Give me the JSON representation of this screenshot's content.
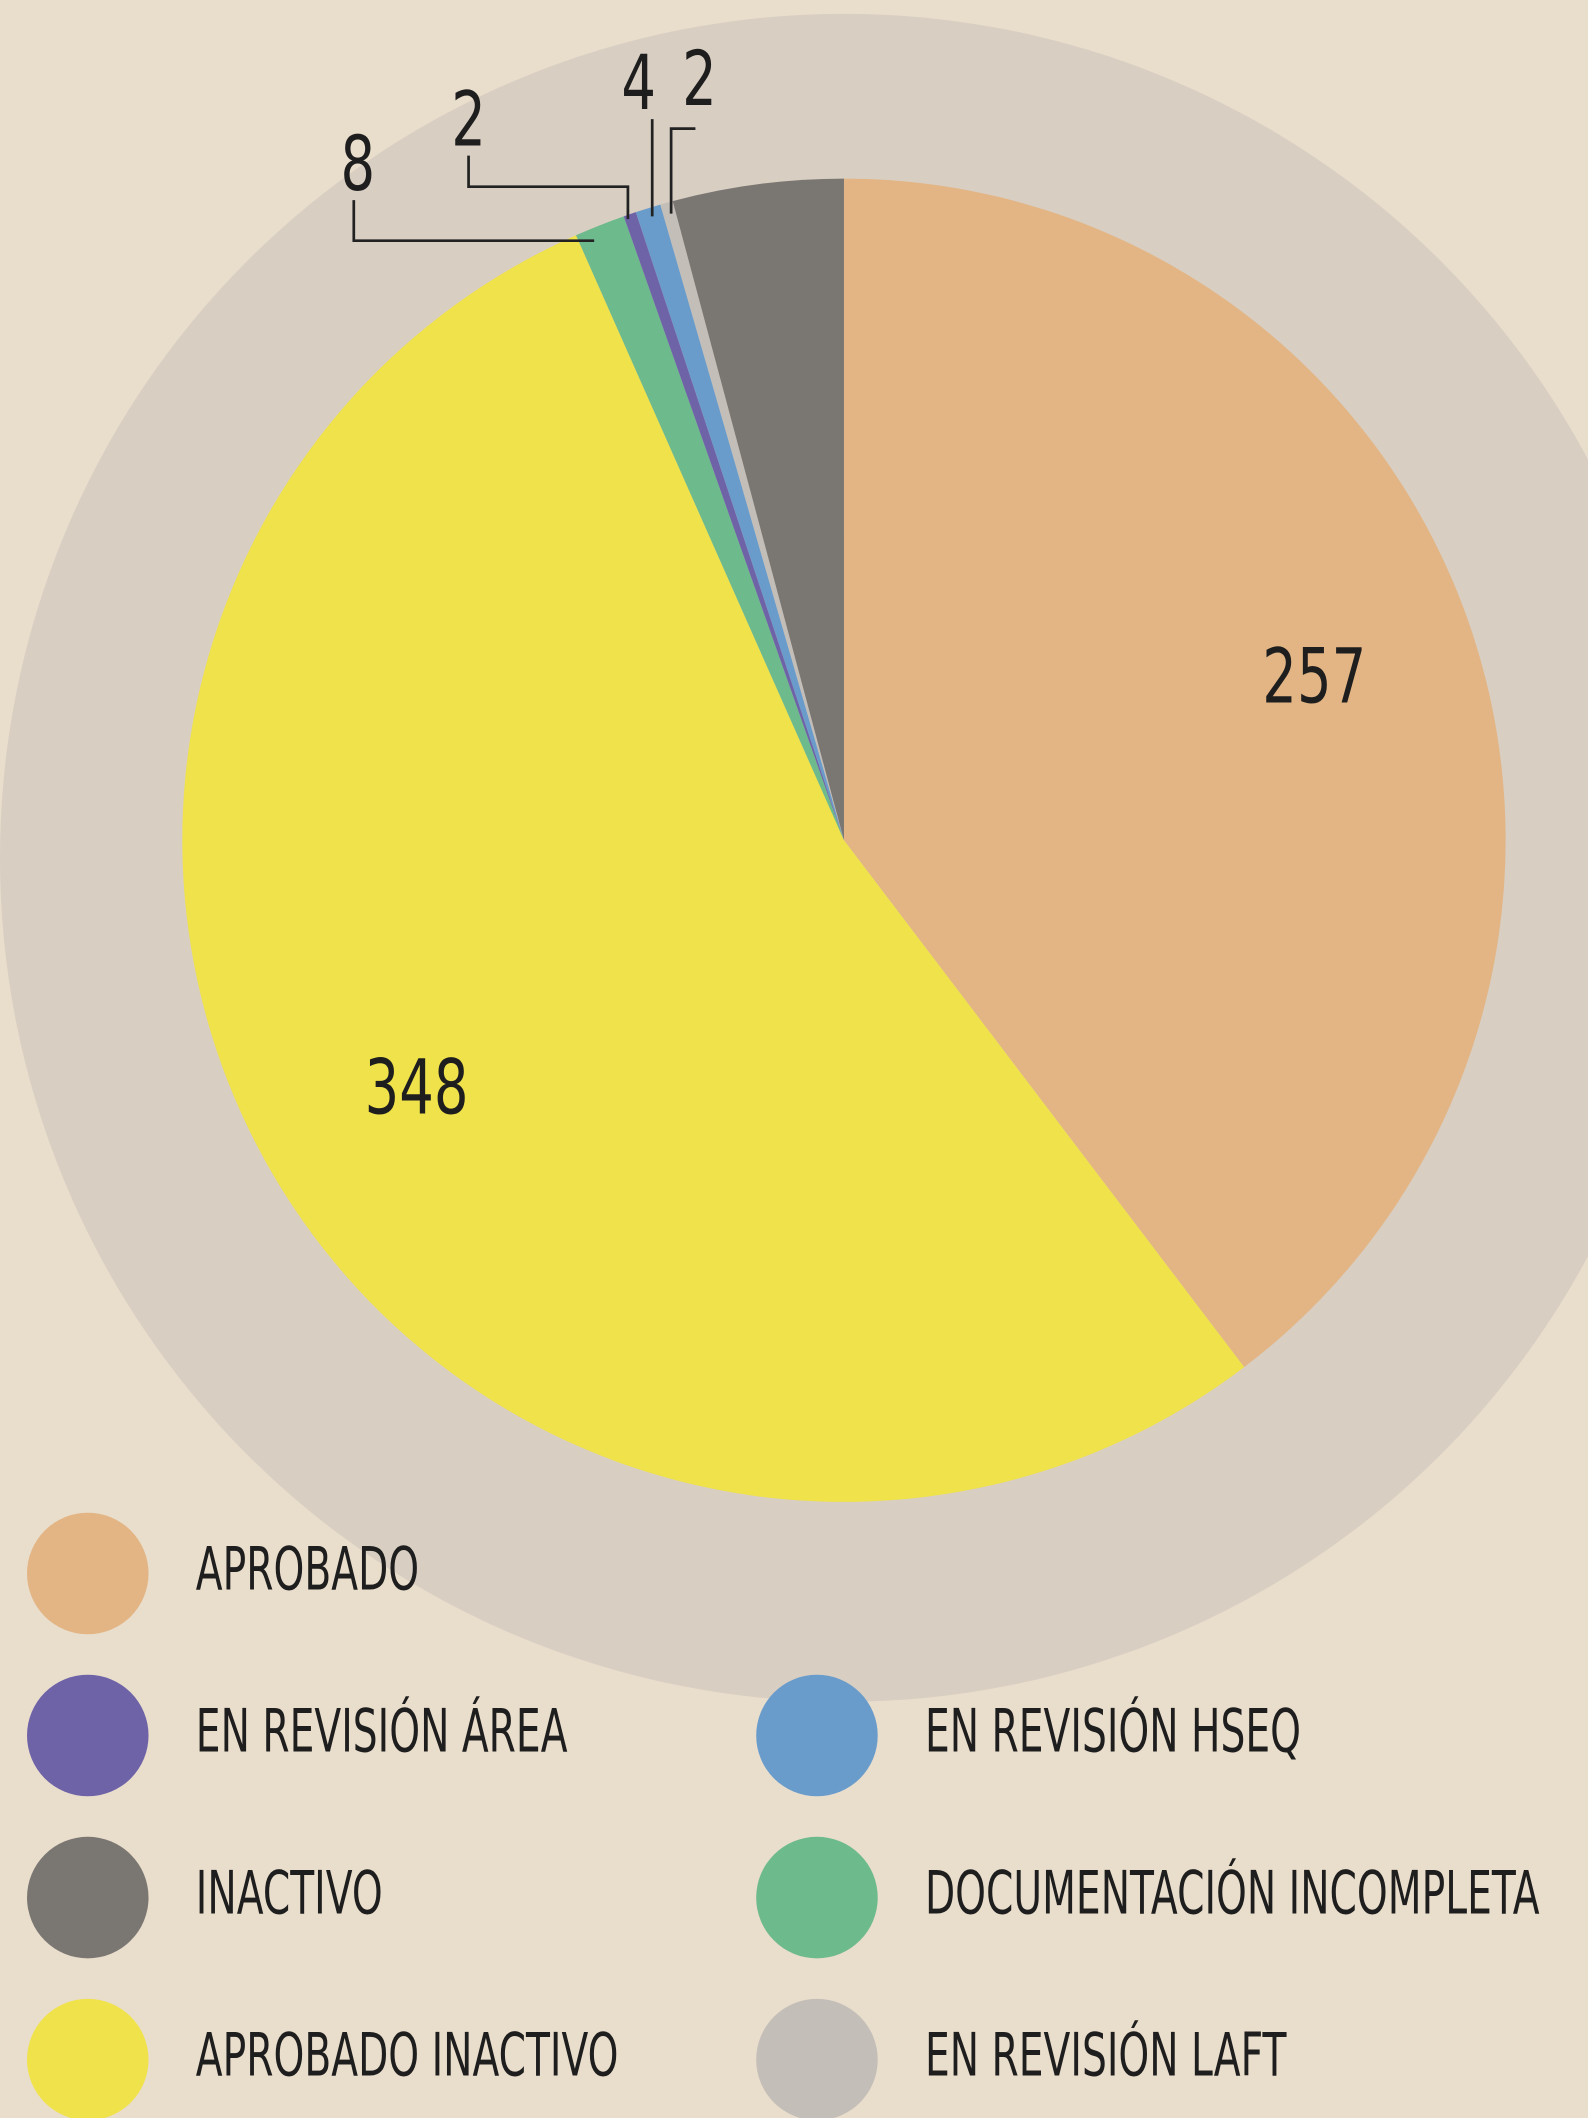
{
  "chart_data": {
    "type": "pie",
    "categories": [
      "APROBADO",
      "APROBADO INACTIVO",
      "DOCUMENTACIÓN INCOMPLETA",
      "EN REVISIÓN ÁREA",
      "EN REVISIÓN HSEQ",
      "EN REVISIÓN LAFT",
      "INACTIVO"
    ],
    "values": [
      257,
      348,
      8,
      2,
      4,
      2,
      27
    ],
    "value_labels": [
      "257",
      "348",
      "8",
      "2",
      "4",
      "2",
      null
    ],
    "colors": [
      "#e3b584",
      "#f0e24a",
      "#6dba8c",
      "#6f63a8",
      "#6a9ccb",
      "#c3beb7",
      "#7a7671"
    ]
  }
}
